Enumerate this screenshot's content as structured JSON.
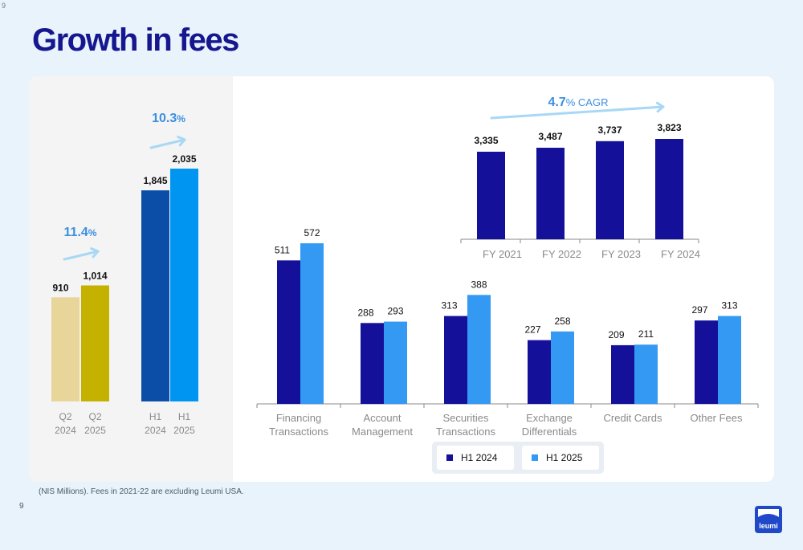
{
  "page": {
    "title": "Growth in fees",
    "page_number": "9",
    "footnote": "(NIS Millions). Fees in 2021-22 are excluding Leumi USA.",
    "logo_text": "leumi"
  },
  "colors": {
    "title": "#16168f",
    "q2_2024": "#e8d59a",
    "q2_2025": "#c4b100",
    "h1_2024_left": "#0b4ea8",
    "h1_2025_left": "#0095f0",
    "h1_2024": "#14109a",
    "h1_2025": "#3399f3",
    "annual": "#14109a",
    "growth_text": "#3b8fe0",
    "arrow": "#a8d8f5",
    "tick_label": "#8a8a8a"
  },
  "chart_data": [
    {
      "type": "bar",
      "categories": [
        "Q2\n2024",
        "Q2\n2025",
        "H1\n2024",
        "H1\n2025"
      ],
      "values": [
        910,
        1014,
        1845,
        2035
      ],
      "data_labels": [
        "910",
        "1,014",
        "1,845",
        "2,035"
      ],
      "growth": [
        {
          "value": "11.4",
          "unit": "%"
        },
        {
          "value": "10.3",
          "unit": "%"
        }
      ]
    },
    {
      "type": "bar",
      "categories": [
        "FY 2021",
        "FY 2022",
        "FY 2023",
        "FY 2024"
      ],
      "values": [
        3335,
        3487,
        3737,
        3823
      ],
      "data_labels": [
        "3,335",
        "3,487",
        "3,737",
        "3,823"
      ],
      "cagr": {
        "value": "4.7",
        "unit": "% CAGR"
      }
    },
    {
      "type": "bar",
      "categories": [
        "Financing\nTransactions",
        "Account\nManagement",
        "Securities\nTransactions",
        "Exchange\nDifferentials",
        "Credit Cards",
        "Other Fees"
      ],
      "series": [
        {
          "name": "H1 2024",
          "values": [
            511,
            288,
            313,
            227,
            209,
            297
          ]
        },
        {
          "name": "H1 2025",
          "values": [
            572,
            293,
            388,
            258,
            211,
            313
          ]
        }
      ],
      "legend": "bottom"
    }
  ]
}
